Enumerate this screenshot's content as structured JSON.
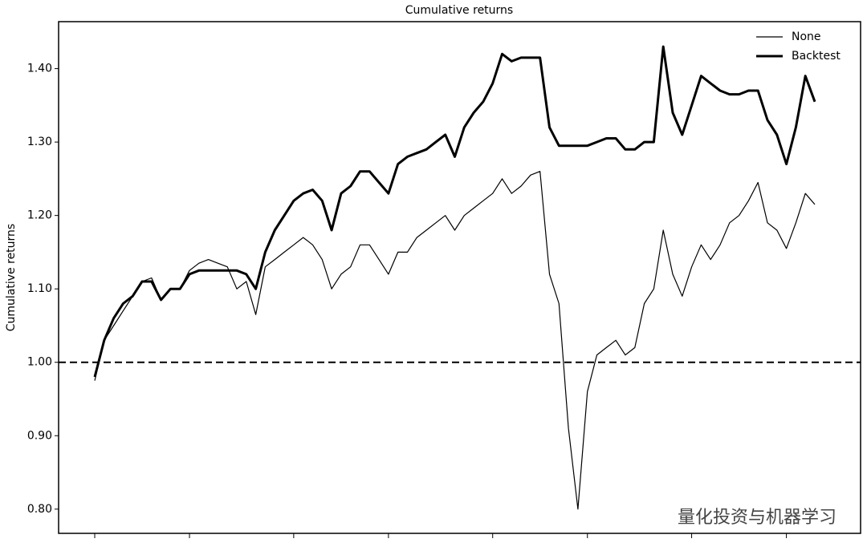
{
  "chart_data": {
    "type": "line",
    "title": "Cumulative returns",
    "ylabel": "Cumulative returns",
    "watermark": "量化投资与机器学习",
    "categories": [
      null,
      null,
      null,
      null,
      null,
      null,
      null,
      null,
      null,
      null,
      null,
      null,
      null,
      null,
      null,
      null,
      null,
      null,
      null,
      null,
      null,
      null,
      null,
      null,
      null,
      null,
      null,
      null,
      null,
      null,
      null,
      null,
      null,
      null,
      null,
      null,
      null,
      null,
      null,
      null,
      null,
      null,
      null,
      null,
      null,
      null,
      null,
      null,
      null,
      null,
      null,
      null,
      null,
      null,
      null,
      null,
      null,
      null,
      null,
      null,
      null,
      null,
      null,
      null,
      null,
      null,
      null,
      null,
      null,
      null,
      null,
      null,
      null,
      null,
      null,
      null,
      null
    ],
    "series": [
      {
        "name": "None",
        "color": "#000000",
        "width": 1.2,
        "values": [
          0.975,
          1.03,
          1.05,
          1.07,
          1.09,
          1.11,
          1.115,
          1.085,
          1.1,
          1.1,
          1.125,
          1.135,
          1.14,
          1.135,
          1.13,
          1.1,
          1.11,
          1.065,
          1.13,
          1.14,
          1.15,
          1.16,
          1.17,
          1.16,
          1.14,
          1.1,
          1.12,
          1.13,
          1.16,
          1.16,
          1.14,
          1.12,
          1.15,
          1.15,
          1.17,
          1.18,
          1.19,
          1.2,
          1.18,
          1.2,
          1.21,
          1.22,
          1.23,
          1.25,
          1.23,
          1.24,
          1.255,
          1.26,
          1.12,
          1.08,
          0.91,
          0.8,
          0.96,
          1.01,
          1.02,
          1.03,
          1.01,
          1.02,
          1.08,
          1.1,
          1.18,
          1.12,
          1.09,
          1.13,
          1.16,
          1.14,
          1.16,
          1.19,
          1.2,
          1.22,
          1.245,
          1.19,
          1.18,
          1.155,
          1.19,
          1.23,
          1.215
        ]
      },
      {
        "name": "Backtest",
        "color": "#000000",
        "width": 3,
        "values": [
          0.98,
          1.03,
          1.06,
          1.08,
          1.09,
          1.11,
          1.11,
          1.085,
          1.1,
          1.1,
          1.12,
          1.125,
          1.125,
          1.125,
          1.125,
          1.125,
          1.12,
          1.1,
          1.15,
          1.18,
          1.2,
          1.22,
          1.23,
          1.235,
          1.22,
          1.18,
          1.23,
          1.24,
          1.26,
          1.26,
          1.245,
          1.23,
          1.27,
          1.28,
          1.285,
          1.29,
          1.3,
          1.31,
          1.28,
          1.32,
          1.34,
          1.355,
          1.38,
          1.42,
          1.41,
          1.415,
          1.415,
          1.415,
          1.32,
          1.295,
          1.295,
          1.295,
          1.295,
          1.3,
          1.305,
          1.305,
          1.29,
          1.29,
          1.3,
          1.3,
          1.43,
          1.34,
          1.31,
          1.35,
          1.39,
          1.38,
          1.37,
          1.365,
          1.365,
          1.37,
          1.37,
          1.33,
          1.31,
          1.27,
          1.32,
          1.39,
          1.355
        ]
      }
    ],
    "hline": 1.0,
    "ylim": [
      0.767,
      1.464
    ],
    "yticks": [
      {
        "value": 0.8,
        "label": "0.80"
      },
      {
        "value": 0.9,
        "label": "0.90"
      },
      {
        "value": 1.0,
        "label": "1.00"
      },
      {
        "value": 1.1,
        "label": "1.10"
      },
      {
        "value": 1.2,
        "label": "1.20"
      },
      {
        "value": 1.3,
        "label": "1.30"
      },
      {
        "value": 1.4,
        "label": "1.40"
      }
    ],
    "legend": "upper right"
  }
}
